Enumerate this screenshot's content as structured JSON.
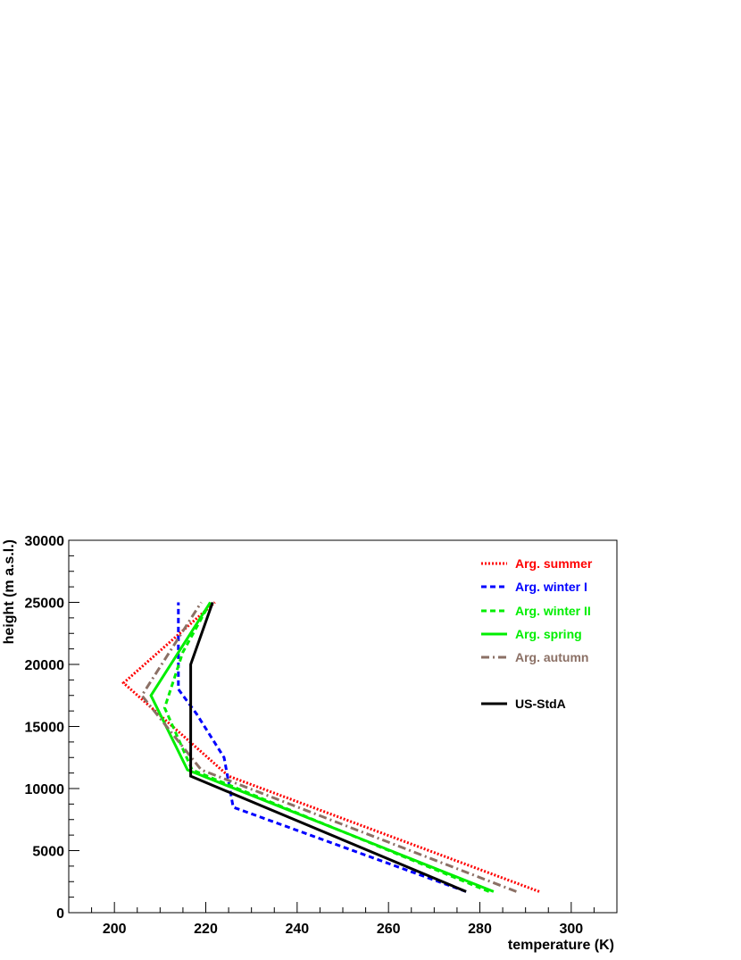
{
  "chart_data": {
    "type": "line",
    "title": "",
    "xlabel": "temperature (K)",
    "ylabel": "height (m a.s.l.)",
    "xlim": [
      190,
      310
    ],
    "ylim": [
      0,
      30000
    ],
    "x_ticks": [
      200,
      220,
      240,
      260,
      280,
      300
    ],
    "x_tick_labels": [
      "200",
      "220",
      "240",
      "260",
      "280",
      "300"
    ],
    "y_ticks": [
      0,
      5000,
      10000,
      15000,
      20000,
      25000,
      30000
    ],
    "y_tick_labels": [
      "0",
      "5000",
      "10000",
      "15000",
      "20000",
      "25000",
      "30000"
    ],
    "grid": false,
    "legend_position": "top-right",
    "series": [
      {
        "name": "Arg. summer",
        "color": "#ff0000",
        "style": "dotted",
        "points": [
          [
            293,
            1700
          ],
          [
            225,
            11000
          ],
          [
            202,
            18500
          ],
          [
            222,
            25000
          ]
        ]
      },
      {
        "name": "Arg. winter I",
        "color": "#0000ff",
        "style": "dashed",
        "points": [
          [
            277,
            1700
          ],
          [
            226,
            8500
          ],
          [
            224,
            12500
          ],
          [
            218,
            16000
          ],
          [
            214,
            18000
          ],
          [
            214,
            25000
          ]
        ]
      },
      {
        "name": "Arg. winter II",
        "color": "#00ee00",
        "style": "dashed",
        "points": [
          [
            282,
            1700
          ],
          [
            217,
            11500
          ],
          [
            211,
            16500
          ],
          [
            215,
            21000
          ],
          [
            221,
            25000
          ]
        ]
      },
      {
        "name": "Arg. spring",
        "color": "#00ee00",
        "style": "solid",
        "points": [
          [
            283,
            1700
          ],
          [
            216,
            11500
          ],
          [
            208,
            17500
          ],
          [
            221,
            25000
          ]
        ]
      },
      {
        "name": "Arg. autumn",
        "color": "#8b7065",
        "style": "dashdot",
        "points": [
          [
            288,
            1700
          ],
          [
            219,
            11500
          ],
          [
            206,
            17500
          ],
          [
            219,
            25000
          ]
        ]
      },
      {
        "name": "US-StdA",
        "color": "#000000",
        "style": "solid",
        "points": [
          [
            277,
            1700
          ],
          [
            216.7,
            11000
          ],
          [
            216.7,
            20000
          ],
          [
            221.5,
            25000
          ]
        ]
      }
    ]
  }
}
